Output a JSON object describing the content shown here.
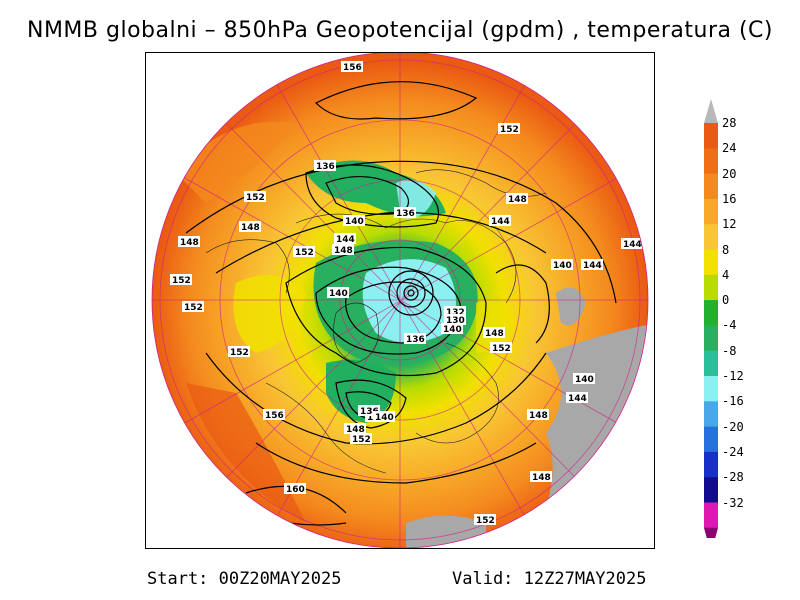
{
  "title": "NMMB globalni – 850hPa Geopotencijal (gpdm) , temperatura (C)",
  "footer": {
    "start": "Start: 00Z20MAY2025",
    "valid": "Valid: 12Z27MAY2025"
  },
  "colorbar": {
    "labels": [
      "28",
      "24",
      "20",
      "16",
      "12",
      "8",
      "4",
      "0",
      "-4",
      "-8",
      "-12",
      "-16",
      "-20",
      "-24",
      "-28",
      "-32"
    ],
    "colors": [
      "#ea5a12",
      "#f06e14",
      "#f48a1e",
      "#f7a828",
      "#f8c634",
      "#f1e000",
      "#b8dc00",
      "#22b030",
      "#28b060",
      "#28c098",
      "#8cf0f0",
      "#48a8e8",
      "#2870e0",
      "#1830c8",
      "#140c90",
      "#e018b0"
    ],
    "top_color": "#b8b8b8",
    "bottom_color": "#8c0070"
  },
  "map": {
    "land_color": "#a8a8a8",
    "contour_labels": [
      "156",
      "152",
      "136",
      "148",
      "144",
      "140",
      "136",
      "152",
      "148",
      "148",
      "152",
      "140",
      "144",
      "148",
      "152",
      "140",
      "136",
      "132",
      "130",
      "140",
      "148",
      "152",
      "152",
      "140",
      "144",
      "152",
      "140",
      "136",
      "148",
      "144",
      "148",
      "152",
      "156",
      "160",
      "148",
      "152",
      "140",
      "144"
    ]
  }
}
